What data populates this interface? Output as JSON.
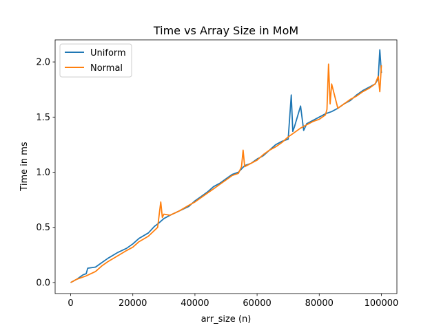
{
  "chart_data": {
    "type": "line",
    "title": "Time vs Array Size in MoM",
    "xlabel": "arr_size (n)",
    "ylabel": "Time in ms",
    "xlim": [
      -5000,
      105000
    ],
    "ylim": [
      -0.1,
      2.2
    ],
    "xticks": [
      0,
      20000,
      40000,
      60000,
      80000,
      100000
    ],
    "xtick_labels": [
      "0",
      "20000",
      "40000",
      "60000",
      "80000",
      "100000"
    ],
    "yticks": [
      0.0,
      0.5,
      1.0,
      1.5,
      2.0
    ],
    "ytick_labels": [
      "0.0",
      "0.5",
      "1.0",
      "1.5",
      "2.0"
    ],
    "grid": false,
    "legend_position": "upper-left",
    "series": [
      {
        "name": "Uniform",
        "color": "#1f77b4",
        "x": [
          0,
          2000,
          4000,
          5000,
          5500,
          8000,
          10000,
          12000,
          15000,
          18000,
          20000,
          22000,
          25000,
          27000,
          28000,
          30000,
          32000,
          35000,
          38000,
          40000,
          42000,
          44000,
          46000,
          48000,
          50000,
          52000,
          54000,
          56000,
          58000,
          60000,
          62000,
          64000,
          66000,
          68000,
          70000,
          71000,
          71500,
          72000,
          74000,
          75000,
          76000,
          78000,
          80000,
          82000,
          84000,
          86000,
          88000,
          90000,
          92000,
          94000,
          96000,
          98000,
          99000,
          99500,
          100000
        ],
        "y": [
          0.0,
          0.03,
          0.07,
          0.08,
          0.13,
          0.14,
          0.18,
          0.22,
          0.27,
          0.31,
          0.35,
          0.4,
          0.45,
          0.51,
          0.53,
          0.58,
          0.61,
          0.65,
          0.69,
          0.74,
          0.78,
          0.82,
          0.87,
          0.9,
          0.94,
          0.98,
          1.0,
          1.06,
          1.08,
          1.12,
          1.15,
          1.2,
          1.25,
          1.28,
          1.3,
          1.7,
          1.37,
          1.41,
          1.6,
          1.38,
          1.44,
          1.47,
          1.5,
          1.53,
          1.55,
          1.58,
          1.62,
          1.65,
          1.7,
          1.74,
          1.77,
          1.8,
          1.85,
          2.11,
          1.9
        ]
      },
      {
        "name": "Normal",
        "color": "#ff7f0e",
        "x": [
          0,
          2000,
          5000,
          8000,
          10000,
          12000,
          15000,
          18000,
          20000,
          22000,
          25000,
          28000,
          28500,
          29000,
          29500,
          30000,
          32000,
          35000,
          38000,
          40000,
          42000,
          44000,
          46000,
          48000,
          50000,
          52000,
          54000,
          55000,
          55500,
          56000,
          58000,
          60000,
          62000,
          64000,
          66000,
          68000,
          70000,
          72000,
          74000,
          76000,
          78000,
          80000,
          82000,
          82500,
          83000,
          83500,
          84000,
          86000,
          88000,
          90000,
          92000,
          94000,
          96000,
          98000,
          99000,
          99500,
          100000
        ],
        "y": [
          0.0,
          0.03,
          0.06,
          0.1,
          0.15,
          0.19,
          0.24,
          0.29,
          0.32,
          0.37,
          0.42,
          0.5,
          0.62,
          0.73,
          0.59,
          0.62,
          0.61,
          0.65,
          0.7,
          0.73,
          0.77,
          0.81,
          0.85,
          0.89,
          0.93,
          0.97,
          0.99,
          1.05,
          1.2,
          1.05,
          1.08,
          1.11,
          1.16,
          1.2,
          1.23,
          1.27,
          1.32,
          1.36,
          1.4,
          1.43,
          1.46,
          1.48,
          1.52,
          1.57,
          1.98,
          1.62,
          1.8,
          1.58,
          1.62,
          1.66,
          1.69,
          1.73,
          1.76,
          1.8,
          1.87,
          1.73,
          1.97
        ]
      }
    ]
  }
}
